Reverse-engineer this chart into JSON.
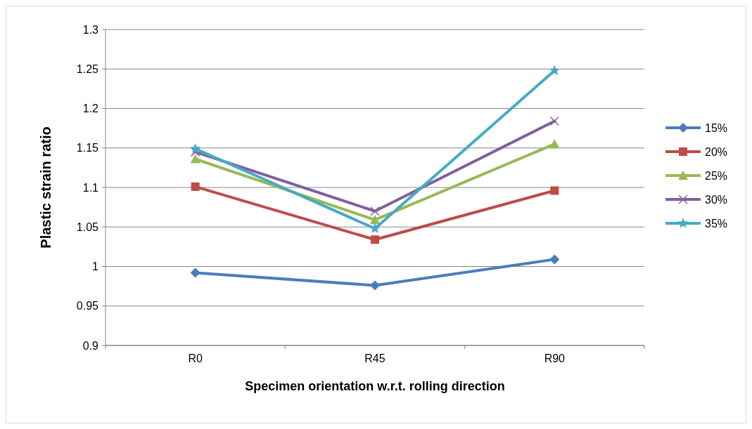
{
  "chart_data": {
    "type": "line",
    "xlabel": "Specimen orientation w.r.t. rolling direction",
    "ylabel": "Plastic strain ratio",
    "categories": [
      "R0",
      "R45",
      "R90"
    ],
    "series": [
      {
        "name": "15%",
        "color": "#4a7ebb",
        "marker": "diamond",
        "values": [
          0.992,
          0.976,
          1.009
        ]
      },
      {
        "name": "20%",
        "color": "#be4b48",
        "marker": "square",
        "values": [
          1.101,
          1.034,
          1.096
        ]
      },
      {
        "name": "25%",
        "color": "#98b954",
        "marker": "triangle",
        "values": [
          1.136,
          1.059,
          1.155
        ]
      },
      {
        "name": "30%",
        "color": "#7d60a0",
        "marker": "cross",
        "values": [
          1.145,
          1.07,
          1.184
        ]
      },
      {
        "name": "35%",
        "color": "#46aac5",
        "marker": "star",
        "values": [
          1.149,
          1.048,
          1.248
        ]
      }
    ],
    "ylim": [
      0.9,
      1.3
    ],
    "yticks": [
      0.9,
      0.95,
      1,
      1.05,
      1.1,
      1.15,
      1.2,
      1.25,
      1.3
    ],
    "grid": "y",
    "legend": "right"
  }
}
